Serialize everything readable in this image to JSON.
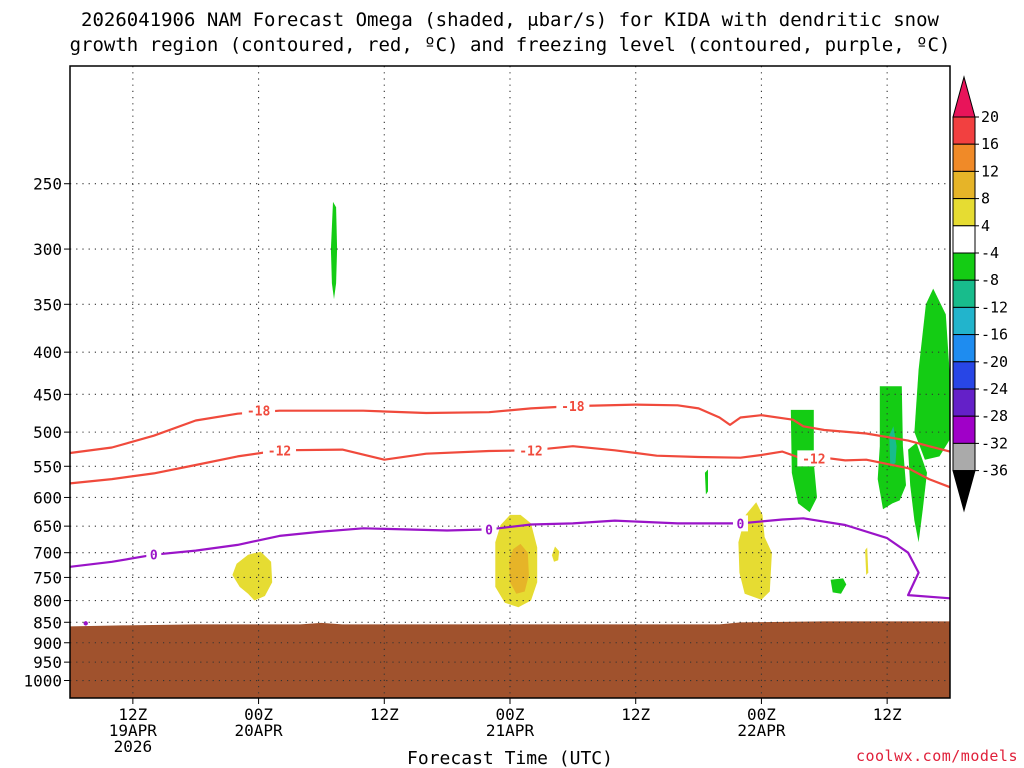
{
  "chart_data": {
    "type": "contour-heatmap",
    "title": "2026041906 NAM Forecast Omega (shaded, μbar/s) for KIDA with dendritic snow growth region (contoured, red, ºC) and freezing level (contoured, purple, ºC)",
    "title_line1": "2026041906 NAM Forecast Omega (shaded, μbar/s) for KIDA with dendritic snow",
    "title_line2": "growth region (contoured, red, ºC) and freezing level (contoured, purple, ºC)",
    "xlabel": "Forecast Time (UTC)",
    "credit": "coolwx.com/models",
    "xlim_hours": [
      0,
      84
    ],
    "ylim_hpa": [
      1050,
      180
    ],
    "y_ticks": [
      250,
      300,
      350,
      400,
      450,
      500,
      550,
      600,
      650,
      700,
      750,
      800,
      850,
      900,
      950,
      1000
    ],
    "x_ticks": [
      {
        "hour": 6,
        "lines": [
          "12Z",
          "19APR",
          "2026"
        ]
      },
      {
        "hour": 18,
        "lines": [
          "00Z",
          "20APR"
        ]
      },
      {
        "hour": 30,
        "lines": [
          "12Z"
        ]
      },
      {
        "hour": 42,
        "lines": [
          "00Z",
          "21APR"
        ]
      },
      {
        "hour": 54,
        "lines": [
          "12Z"
        ]
      },
      {
        "hour": 66,
        "lines": [
          "00Z",
          "22APR"
        ]
      },
      {
        "hour": 78,
        "lines": [
          "12Z"
        ]
      }
    ],
    "surface_pressure_hpa": 855,
    "surface_color": "#a0522d",
    "colorbar": {
      "levels": [
        20,
        16,
        12,
        8,
        4,
        -4,
        -8,
        -12,
        -16,
        -20,
        -24,
        -28,
        -32,
        -36
      ],
      "colors": [
        "#e8145a",
        "#f24040",
        "#f08a28",
        "#e6b428",
        "#e6dc32",
        "#ffffff",
        "#14cc14",
        "#18bc8c",
        "#22b4cc",
        "#1e8cf0",
        "#2846e6",
        "#6420c8",
        "#a000c8",
        "#aaaaaa",
        "#000000"
      ]
    },
    "contour_lines": [
      {
        "name": "dendritic-upper",
        "label": "-18",
        "color": "#f04a3c",
        "points": [
          [
            0,
            530
          ],
          [
            4,
            522
          ],
          [
            8,
            505
          ],
          [
            12,
            484
          ],
          [
            16,
            475
          ],
          [
            20,
            471
          ],
          [
            28,
            471
          ],
          [
            34,
            474
          ],
          [
            40,
            473
          ],
          [
            44,
            468
          ],
          [
            48,
            465
          ],
          [
            54,
            463
          ],
          [
            58,
            464
          ],
          [
            60,
            468
          ],
          [
            62,
            480
          ],
          [
            63,
            490
          ],
          [
            64,
            480
          ],
          [
            66,
            477
          ],
          [
            69,
            483
          ],
          [
            70,
            492
          ],
          [
            72,
            497
          ],
          [
            76,
            502
          ],
          [
            80,
            512
          ],
          [
            82,
            520
          ],
          [
            84,
            528
          ]
        ]
      },
      {
        "name": "dendritic-lower",
        "label": "-12",
        "color": "#f04a3c",
        "points": [
          [
            0,
            577
          ],
          [
            4,
            570
          ],
          [
            8,
            561
          ],
          [
            12,
            548
          ],
          [
            16,
            535
          ],
          [
            20,
            526
          ],
          [
            26,
            525
          ],
          [
            30,
            540
          ],
          [
            34,
            531
          ],
          [
            40,
            527
          ],
          [
            44,
            526
          ],
          [
            48,
            520
          ],
          [
            52,
            526
          ],
          [
            56,
            534
          ],
          [
            60,
            536
          ],
          [
            64,
            537
          ],
          [
            66,
            533
          ],
          [
            68,
            528
          ],
          [
            70,
            539
          ],
          [
            72,
            537
          ],
          [
            74,
            541
          ],
          [
            76,
            540
          ],
          [
            80,
            553
          ],
          [
            82,
            570
          ],
          [
            84,
            583
          ]
        ]
      },
      {
        "name": "freezing-level",
        "label": "0",
        "color": "#9a14c8",
        "points": [
          [
            0,
            728
          ],
          [
            4,
            718
          ],
          [
            8,
            704
          ],
          [
            12,
            696
          ],
          [
            16,
            685
          ],
          [
            20,
            668
          ],
          [
            24,
            660
          ],
          [
            28,
            654
          ],
          [
            36,
            658
          ],
          [
            40,
            656
          ],
          [
            44,
            647
          ],
          [
            48,
            645
          ],
          [
            52,
            640
          ],
          [
            58,
            645
          ],
          [
            64,
            645
          ],
          [
            68,
            638
          ],
          [
            70,
            636
          ],
          [
            74,
            648
          ],
          [
            78,
            672
          ],
          [
            80,
            700
          ],
          [
            81,
            740
          ],
          [
            80,
            788
          ],
          [
            84,
            795
          ]
        ]
      }
    ],
    "contour_labels": [
      {
        "text": "-18",
        "hour": 18,
        "hpa": 471
      },
      {
        "text": "-18",
        "hour": 48,
        "hpa": 465
      },
      {
        "text": "-12",
        "hour": 20,
        "hpa": 526
      },
      {
        "text": "-12",
        "hour": 44,
        "hpa": 526
      },
      {
        "text": "-12",
        "hour": 71,
        "hpa": 538
      },
      {
        "text": "0",
        "hour": 8,
        "hpa": 704
      },
      {
        "text": "0",
        "hour": 40,
        "hpa": 656
      },
      {
        "text": "0",
        "hour": 64,
        "hpa": 645
      }
    ],
    "shaded_regions": [
      {
        "name": "omega-green-upper",
        "color": "#14cc14",
        "points": [
          [
            25.1,
            263
          ],
          [
            25.4,
            267
          ],
          [
            25.5,
            300
          ],
          [
            25.4,
            330
          ],
          [
            25.2,
            345
          ],
          [
            25.0,
            330
          ],
          [
            24.9,
            300
          ]
        ]
      },
      {
        "name": "omega-yellow-20apr",
        "color": "#e6dc32",
        "points": [
          [
            15.5,
            745
          ],
          [
            15.9,
            722
          ],
          [
            17.0,
            704
          ],
          [
            18.2,
            698
          ],
          [
            19.2,
            718
          ],
          [
            19.3,
            760
          ],
          [
            18.6,
            790
          ],
          [
            17.6,
            800
          ],
          [
            17.0,
            785
          ],
          [
            16.2,
            770
          ]
        ]
      },
      {
        "name": "omega-yellow-21apr",
        "color": "#e6dc32",
        "points": [
          [
            40.6,
            680
          ],
          [
            41.1,
            648
          ],
          [
            42.0,
            630
          ],
          [
            43.0,
            630
          ],
          [
            44.0,
            645
          ],
          [
            44.6,
            690
          ],
          [
            44.6,
            760
          ],
          [
            44.0,
            800
          ],
          [
            42.8,
            815
          ],
          [
            41.5,
            805
          ],
          [
            40.6,
            770
          ]
        ]
      },
      {
        "name": "omega-orange-21apr",
        "color": "#e6b428",
        "points": [
          [
            41.9,
            718
          ],
          [
            42.3,
            693
          ],
          [
            43.0,
            683
          ],
          [
            43.7,
            700
          ],
          [
            43.8,
            745
          ],
          [
            43.4,
            780
          ],
          [
            42.6,
            785
          ],
          [
            42.0,
            760
          ]
        ]
      },
      {
        "name": "omega-yellow-small",
        "color": "#e6dc32",
        "points": [
          [
            46.0,
            705
          ],
          [
            46.3,
            688
          ],
          [
            46.7,
            697
          ],
          [
            46.6,
            715
          ],
          [
            46.2,
            718
          ]
        ]
      },
      {
        "name": "omega-yellow-22apr",
        "color": "#e6dc32",
        "points": [
          [
            63.8,
            680
          ],
          [
            64.5,
            630
          ],
          [
            65.5,
            608
          ],
          [
            66.1,
            630
          ],
          [
            66.3,
            670
          ],
          [
            67.0,
            700
          ],
          [
            66.8,
            780
          ],
          [
            66.0,
            798
          ],
          [
            64.4,
            785
          ],
          [
            63.9,
            740
          ]
        ]
      },
      {
        "name": "omega-green-22apr",
        "color": "#14cc14",
        "points": [
          [
            68.8,
            470
          ],
          [
            71.0,
            470
          ],
          [
            71.0,
            545
          ],
          [
            71.3,
            600
          ],
          [
            70.6,
            625
          ],
          [
            69.5,
            610
          ],
          [
            68.9,
            560
          ]
        ]
      },
      {
        "name": "omega-green-small",
        "color": "#14cc14",
        "points": [
          [
            60.6,
            560
          ],
          [
            60.9,
            555
          ],
          [
            60.9,
            590
          ],
          [
            60.7,
            595
          ]
        ]
      },
      {
        "name": "omega-green-spot",
        "color": "#14cc14",
        "points": [
          [
            72.6,
            755
          ],
          [
            73.8,
            752
          ],
          [
            74.1,
            765
          ],
          [
            73.6,
            785
          ],
          [
            72.8,
            782
          ]
        ]
      },
      {
        "name": "omega-green-12z22",
        "color": "#14cc14",
        "points": [
          [
            77.3,
            440
          ],
          [
            79.4,
            440
          ],
          [
            79.5,
            520
          ],
          [
            79.8,
            580
          ],
          [
            79.2,
            605
          ],
          [
            78.5,
            610
          ],
          [
            77.6,
            620
          ],
          [
            77.1,
            570
          ],
          [
            77.3,
            520
          ]
        ]
      },
      {
        "name": "omega-teal-12z22",
        "color": "#18bc8c",
        "points": [
          [
            78.2,
            505
          ],
          [
            78.6,
            492
          ],
          [
            78.9,
            520
          ],
          [
            78.8,
            545
          ],
          [
            78.3,
            550
          ]
        ]
      },
      {
        "name": "omega-green-right",
        "color": "#14cc14",
        "points": [
          [
            80.6,
            500
          ],
          [
            81.0,
            420
          ],
          [
            81.7,
            350
          ],
          [
            82.4,
            335
          ],
          [
            83.6,
            360
          ],
          [
            84,
            430
          ],
          [
            84,
            510
          ],
          [
            83.0,
            535
          ],
          [
            81.6,
            540
          ]
        ]
      },
      {
        "name": "omega-green-right-lower",
        "color": "#14cc14",
        "points": [
          [
            80.0,
            525
          ],
          [
            80.8,
            515
          ],
          [
            81.8,
            560
          ],
          [
            81.4,
            620
          ],
          [
            81.0,
            680
          ],
          [
            80.6,
            640
          ],
          [
            80.2,
            580
          ]
        ]
      },
      {
        "name": "omega-yellow-sliver",
        "color": "#e6dc32",
        "points": [
          [
            75.9,
            695
          ],
          [
            76.1,
            690
          ],
          [
            76.2,
            740
          ],
          [
            76.0,
            745
          ]
        ]
      }
    ]
  }
}
